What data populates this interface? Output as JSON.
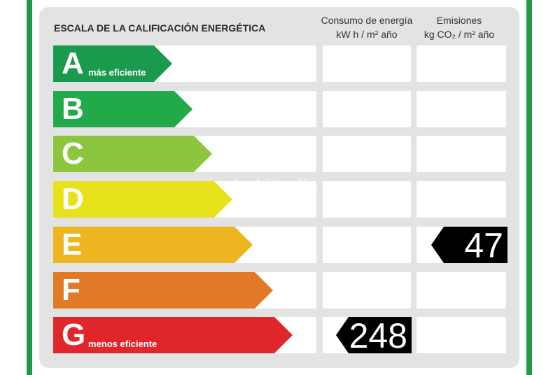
{
  "title": "ESCALA DE LA CALIFICACIÓN ENERGÉTICA",
  "columns": {
    "energy": {
      "line1": "Consumo de energía",
      "line2": "kW h  / m² año"
    },
    "emissions": {
      "line1": "Emisiones",
      "line2": "kg CO₂  / m² año"
    }
  },
  "classes": [
    {
      "letter": "A",
      "note": "más eficiente",
      "color": "#1a9a4c"
    },
    {
      "letter": "B",
      "note": "",
      "color": "#21a94a"
    },
    {
      "letter": "C",
      "note": "",
      "color": "#8cc63f"
    },
    {
      "letter": "D",
      "note": "",
      "color": "#e8e21c"
    },
    {
      "letter": "E",
      "note": "",
      "color": "#edb51f"
    },
    {
      "letter": "F",
      "note": "",
      "color": "#e07a26"
    },
    {
      "letter": "G",
      "note": "menos eficiente",
      "color": "#e1262a"
    }
  ],
  "ratings": {
    "energy": {
      "class": "G",
      "value": "248"
    },
    "emissions": {
      "class": "E",
      "value": "47"
    }
  },
  "watermark": "habitaclia"
}
